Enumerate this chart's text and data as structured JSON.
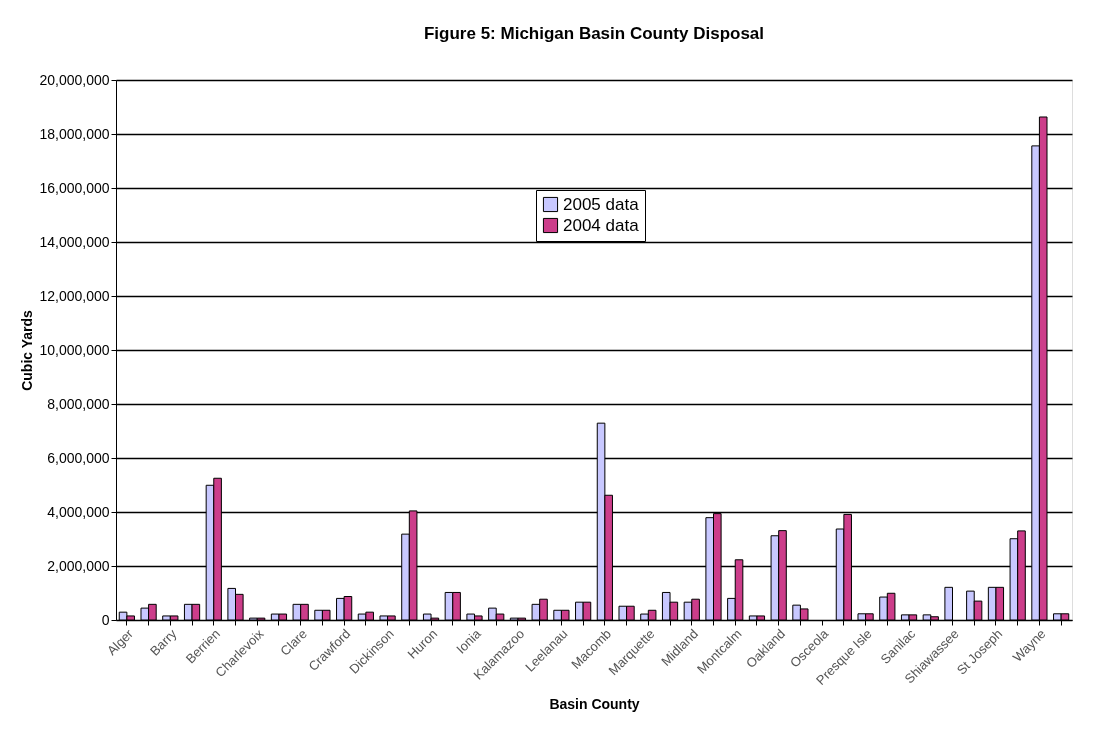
{
  "chart_data": {
    "type": "bar",
    "title": "Figure 5: Michigan Basin County Disposal",
    "xlabel": "Basin County",
    "ylabel": "Cubic Yards",
    "categories": [
      "Alger",
      null,
      "Barry",
      null,
      "Berrien",
      null,
      "Charlevoix",
      null,
      "Clare",
      null,
      "Crawford",
      null,
      "Dickinson",
      null,
      "Huron",
      null,
      "Ionia",
      null,
      "Kalamazoo",
      null,
      "Leelanau",
      null,
      "Macomb",
      null,
      "Marquette",
      null,
      "Midland",
      null,
      "Montcalm",
      null,
      "Oakland",
      null,
      "Osceola",
      null,
      "Presque Isle",
      null,
      "Sanilac",
      null,
      "Shiawassee",
      null,
      "St Joseph",
      null,
      "Wayne",
      null
    ],
    "series": [
      {
        "name": "2005 data",
        "color": "#c8c8ff",
        "values": [
          290000,
          440000,
          150000,
          580000,
          4990000,
          1170000,
          70000,
          220000,
          580000,
          360000,
          800000,
          220000,
          150000,
          3180000,
          220000,
          1020000,
          220000,
          440000,
          70000,
          580000,
          360000,
          660000,
          7290000,
          510000,
          220000,
          1020000,
          660000,
          3790000,
          800000,
          150000,
          3120000,
          550000,
          null,
          3370000,
          230000,
          850000,
          190000,
          190000,
          1210000,
          1070000,
          1210000,
          3010000,
          17560000,
          230000
        ]
      },
      {
        "name": "2004 data",
        "color": "#cc3d8a",
        "values": [
          150000,
          580000,
          150000,
          580000,
          5250000,
          950000,
          70000,
          220000,
          580000,
          360000,
          870000,
          290000,
          150000,
          4040000,
          70000,
          1020000,
          150000,
          220000,
          70000,
          770000,
          360000,
          660000,
          4620000,
          510000,
          360000,
          660000,
          770000,
          3940000,
          2230000,
          150000,
          3310000,
          410000,
          null,
          3910000,
          230000,
          990000,
          190000,
          120000,
          null,
          700000,
          1210000,
          3300000,
          18630000,
          230000
        ]
      }
    ],
    "ylim": [
      0,
      20000000
    ],
    "yticks": [
      0,
      {
        "value": 2000000,
        "label": "2,000,000"
      },
      {
        "value": 4000000,
        "label": "4,000,000"
      },
      {
        "value": 6000000,
        "label": "6,000,000"
      },
      {
        "value": 8000000,
        "label": "8,000,000"
      },
      {
        "value": 10000000,
        "label": "10,000,000"
      },
      {
        "value": 12000000,
        "label": "12,000,000"
      },
      {
        "value": 14000000,
        "label": "14,000,000"
      },
      {
        "value": 16000000,
        "label": "16,000,000"
      },
      {
        "value": 18000000,
        "label": "18,000,000"
      },
      {
        "value": 20000000,
        "label": "20,000,000"
      }
    ],
    "grid": "y",
    "legend": "top"
  }
}
